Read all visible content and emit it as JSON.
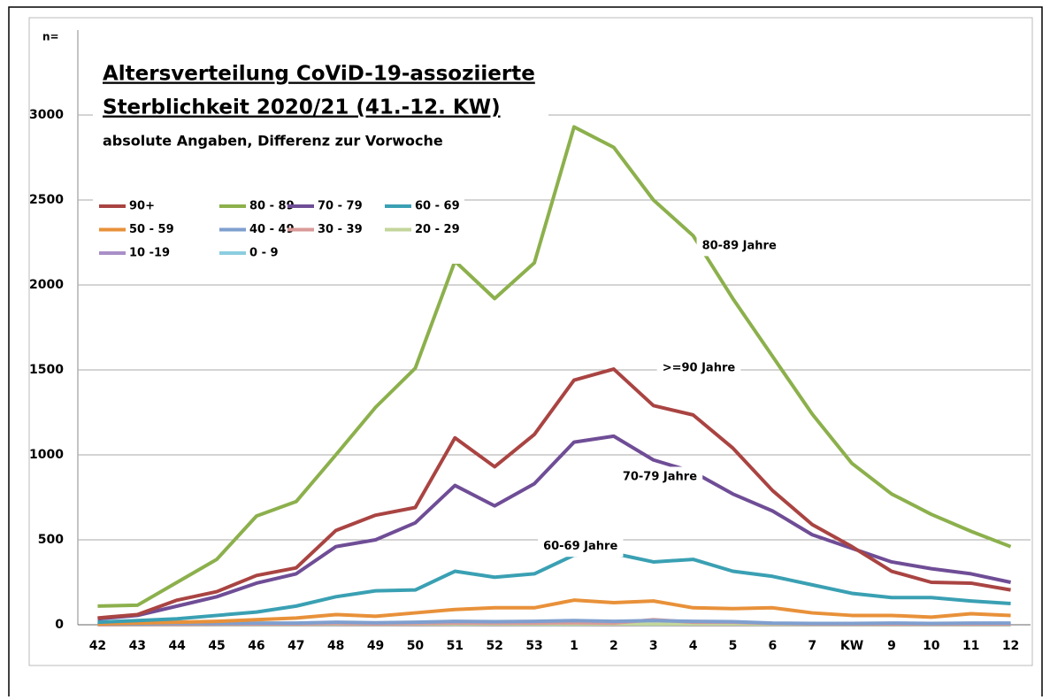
{
  "chart_data": {
    "type": "line",
    "title": [
      "Altersverteilung CoViD-19-assoziierte",
      "Sterblichkeit 2020/21 (41.-12. KW)"
    ],
    "subtitle": "absolute Angaben, Differenz zur Vorwoche",
    "y_label": "n=",
    "categories": [
      "42",
      "43",
      "44",
      "45",
      "46",
      "47",
      "48",
      "49",
      "50",
      "51",
      "52",
      "53",
      "1",
      "2",
      "3",
      "4",
      "5",
      "6",
      "7",
      "KW",
      "9",
      "10",
      "11",
      "12"
    ],
    "ylim": [
      0,
      3500
    ],
    "yticks": [
      0,
      500,
      1000,
      1500,
      2000,
      2500,
      3000
    ],
    "grid": true,
    "legend": "upper left",
    "series": [
      {
        "name": "90+",
        "color": "#a94442",
        "values": [
          40,
          60,
          145,
          195,
          290,
          335,
          555,
          645,
          690,
          1100,
          930,
          1120,
          1440,
          1505,
          1290,
          1235,
          1040,
          790,
          590,
          460,
          315,
          250,
          245,
          205
        ]
      },
      {
        "name": "80 - 89",
        "color": "#8cb04c",
        "values": [
          110,
          115,
          250,
          385,
          640,
          725,
          1000,
          1280,
          1510,
          2140,
          1920,
          2130,
          2930,
          2810,
          2500,
          2290,
          1920,
          1580,
          1240,
          950,
          770,
          650,
          550,
          460
        ]
      },
      {
        "name": "70 - 79",
        "color": "#6f4d96",
        "values": [
          35,
          55,
          110,
          165,
          245,
          300,
          460,
          500,
          600,
          820,
          700,
          830,
          1075,
          1110,
          970,
          900,
          770,
          670,
          530,
          450,
          370,
          330,
          300,
          250
        ]
      },
      {
        "name": "60 - 69",
        "color": "#3aa0b3",
        "values": [
          15,
          25,
          35,
          55,
          75,
          110,
          165,
          200,
          205,
          315,
          280,
          300,
          410,
          420,
          370,
          385,
          315,
          285,
          235,
          185,
          160,
          160,
          140,
          125
        ]
      },
      {
        "name": "50 - 59",
        "color": "#e8913a",
        "values": [
          5,
          10,
          15,
          20,
          30,
          40,
          60,
          50,
          70,
          90,
          100,
          100,
          145,
          130,
          140,
          100,
          95,
          100,
          70,
          55,
          55,
          45,
          65,
          55
        ]
      },
      {
        "name": "40 - 49",
        "color": "#7f9fcf",
        "values": [
          5,
          5,
          8,
          8,
          10,
          10,
          15,
          12,
          15,
          20,
          18,
          20,
          25,
          20,
          25,
          20,
          18,
          10,
          8,
          8,
          10,
          8,
          10,
          10
        ]
      },
      {
        "name": "30 - 39",
        "color": "#d99a98",
        "values": [
          2,
          3,
          3,
          5,
          5,
          5,
          8,
          5,
          8,
          10,
          10,
          10,
          12,
          10,
          30,
          15,
          15,
          8,
          5,
          5,
          5,
          5,
          5,
          5
        ]
      },
      {
        "name": "20 - 29",
        "color": "#c3d69b",
        "values": [
          1,
          1,
          1,
          2,
          2,
          2,
          3,
          2,
          3,
          3,
          3,
          3,
          3,
          3,
          3,
          3,
          3,
          2,
          2,
          2,
          2,
          2,
          2,
          2
        ]
      },
      {
        "name": "10 -19",
        "color": "#a98fc7",
        "values": [
          0,
          0,
          0,
          0,
          0,
          0,
          1,
          0,
          0,
          1,
          0,
          1,
          1,
          0,
          1,
          0,
          0,
          0,
          0,
          0,
          0,
          0,
          0,
          0
        ]
      },
      {
        "name": "0 - 9",
        "color": "#8ccde0",
        "values": [
          0,
          0,
          0,
          0,
          0,
          0,
          0,
          0,
          0,
          0,
          0,
          0,
          0,
          0,
          0,
          0,
          0,
          0,
          0,
          0,
          0,
          0,
          0,
          0
        ]
      }
    ],
    "annotations": [
      {
        "text": "80-89 Jahre",
        "category": 15,
        "value": 2230
      },
      {
        "text": ">=90 Jahre",
        "category": 14,
        "value": 1510
      },
      {
        "text": "70-79 Jahre",
        "category": 13,
        "value": 870
      },
      {
        "text": "60-69 Jahre",
        "category": 11,
        "value": 460
      }
    ]
  }
}
